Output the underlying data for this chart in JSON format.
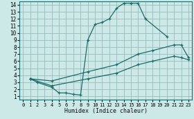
{
  "xlabel": "Humidex (Indice chaleur)",
  "bg_color": "#cce9e8",
  "grid_color": "#99bbbb",
  "line_color": "#1a6b6b",
  "xlim": [
    -0.5,
    23.5
  ],
  "ylim": [
    0.5,
    14.5
  ],
  "xticks": [
    0,
    1,
    2,
    3,
    4,
    5,
    6,
    7,
    8,
    9,
    10,
    11,
    12,
    13,
    14,
    15,
    16,
    17,
    18,
    19,
    20,
    21,
    22,
    23
  ],
  "yticks": [
    1,
    2,
    3,
    4,
    5,
    6,
    7,
    8,
    9,
    10,
    11,
    12,
    13,
    14
  ],
  "line1_x": [
    1,
    2,
    4,
    5,
    6,
    7,
    8,
    9,
    10,
    11,
    12,
    13,
    14,
    15,
    16,
    17,
    20
  ],
  "line1_y": [
    3.5,
    3.0,
    2.3,
    1.5,
    1.5,
    1.3,
    1.2,
    9.0,
    11.2,
    11.5,
    12.0,
    13.5,
    14.2,
    14.2,
    14.2,
    12.0,
    9.5
  ],
  "line2_x": [
    1,
    4,
    9,
    13,
    16,
    18,
    21,
    22,
    23
  ],
  "line2_y": [
    3.5,
    3.2,
    4.5,
    5.5,
    7.0,
    7.5,
    8.3,
    8.3,
    6.5
  ],
  "line3_x": [
    1,
    4,
    9,
    13,
    16,
    18,
    21,
    22,
    23
  ],
  "line3_y": [
    3.5,
    2.5,
    3.5,
    4.3,
    5.5,
    6.0,
    6.7,
    6.5,
    6.2
  ]
}
